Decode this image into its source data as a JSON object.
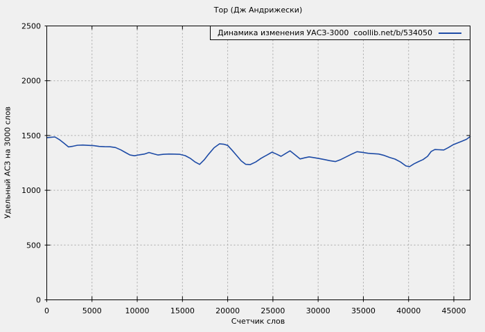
{
  "colors": {
    "background": "#f0f0f0",
    "frame": "#000000",
    "grid": "#a6a6a6",
    "text": "#000000",
    "series_line": "#1c4aa5"
  },
  "chart_data": {
    "type": "line",
    "title": "Тор (Дж Андрижески)",
    "xlabel": "Счетчик слов",
    "ylabel": "Удельный АСЗ на 3000 слов",
    "legend": {
      "label": "Динамика изменения УАСЗ-3000  coollib.net/b/534050",
      "position": "top-right-inside",
      "boxed": true
    },
    "xlim": [
      0,
      46800
    ],
    "ylim": [
      0,
      2500
    ],
    "xticks": [
      0,
      5000,
      10000,
      15000,
      20000,
      25000,
      30000,
      35000,
      40000,
      45000
    ],
    "yticks": [
      0,
      500,
      1000,
      1500,
      2000,
      2500
    ],
    "grid": "dashed",
    "series": [
      {
        "name": "Динамика изменения УАСЗ-3000  coollib.net/b/534050",
        "points": [
          [
            0,
            1480
          ],
          [
            400,
            1483
          ],
          [
            900,
            1487
          ],
          [
            1400,
            1462
          ],
          [
            1900,
            1430
          ],
          [
            2400,
            1396
          ],
          [
            2900,
            1402
          ],
          [
            3400,
            1411
          ],
          [
            4000,
            1413
          ],
          [
            4600,
            1410
          ],
          [
            5200,
            1407
          ],
          [
            5800,
            1400
          ],
          [
            6400,
            1398
          ],
          [
            7000,
            1397
          ],
          [
            7600,
            1390
          ],
          [
            8200,
            1368
          ],
          [
            8700,
            1345
          ],
          [
            9200,
            1322
          ],
          [
            9700,
            1315
          ],
          [
            10200,
            1323
          ],
          [
            10800,
            1331
          ],
          [
            11300,
            1345
          ],
          [
            11800,
            1333
          ],
          [
            12300,
            1322
          ],
          [
            12900,
            1328
          ],
          [
            13500,
            1331
          ],
          [
            14100,
            1330
          ],
          [
            14700,
            1328
          ],
          [
            15300,
            1316
          ],
          [
            15900,
            1290
          ],
          [
            16400,
            1258
          ],
          [
            16900,
            1236
          ],
          [
            17400,
            1278
          ],
          [
            17900,
            1330
          ],
          [
            18500,
            1388
          ],
          [
            19100,
            1424
          ],
          [
            19600,
            1420
          ],
          [
            20000,
            1410
          ],
          [
            20500,
            1365
          ],
          [
            21000,
            1316
          ],
          [
            21500,
            1268
          ],
          [
            22000,
            1237
          ],
          [
            22500,
            1235
          ],
          [
            23100,
            1258
          ],
          [
            23700,
            1292
          ],
          [
            24300,
            1320
          ],
          [
            24900,
            1348
          ],
          [
            25400,
            1330
          ],
          [
            25900,
            1310
          ],
          [
            26400,
            1336
          ],
          [
            26900,
            1360
          ],
          [
            27500,
            1320
          ],
          [
            28000,
            1286
          ],
          [
            28500,
            1296
          ],
          [
            29000,
            1305
          ],
          [
            29600,
            1297
          ],
          [
            30100,
            1290
          ],
          [
            30700,
            1280
          ],
          [
            31300,
            1270
          ],
          [
            31900,
            1262
          ],
          [
            32500,
            1280
          ],
          [
            33100,
            1305
          ],
          [
            33700,
            1330
          ],
          [
            34300,
            1352
          ],
          [
            34900,
            1346
          ],
          [
            35500,
            1338
          ],
          [
            36100,
            1334
          ],
          [
            36700,
            1331
          ],
          [
            37300,
            1318
          ],
          [
            37900,
            1300
          ],
          [
            38500,
            1285
          ],
          [
            39100,
            1258
          ],
          [
            39700,
            1222
          ],
          [
            40100,
            1215
          ],
          [
            40600,
            1242
          ],
          [
            41100,
            1262
          ],
          [
            41600,
            1280
          ],
          [
            42100,
            1310
          ],
          [
            42500,
            1355
          ],
          [
            42900,
            1372
          ],
          [
            43400,
            1370
          ],
          [
            43900,
            1368
          ],
          [
            44400,
            1390
          ],
          [
            44900,
            1415
          ],
          [
            45400,
            1432
          ],
          [
            45900,
            1448
          ],
          [
            46400,
            1465
          ],
          [
            46800,
            1490
          ]
        ]
      }
    ]
  }
}
